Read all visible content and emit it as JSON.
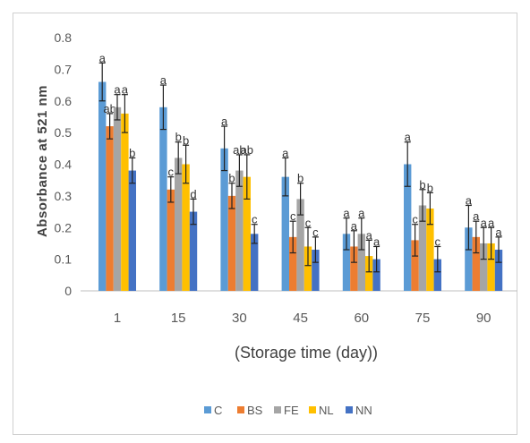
{
  "chart_data": {
    "type": "bar",
    "title": "",
    "xlabel": "(Storage time (day))",
    "ylabel": "Absorbance at 521 nm",
    "ylim": [
      0,
      0.8
    ],
    "yticks": [
      "0",
      "0.1",
      "0.2",
      "0.3",
      "0.4",
      "0.5",
      "0.6",
      "0.7",
      "0.8"
    ],
    "categories": [
      "1",
      "15",
      "30",
      "45",
      "60",
      "75",
      "90"
    ],
    "grid": false,
    "legend_position": "bottom",
    "series": [
      {
        "name": "C",
        "color": "#5b9bd5",
        "values": [
          0.66,
          0.58,
          0.45,
          0.36,
          0.18,
          0.4,
          0.2
        ],
        "errors": [
          0.06,
          0.07,
          0.07,
          0.06,
          0.05,
          0.07,
          0.07
        ],
        "letters": [
          "a",
          "a",
          "a",
          "a",
          "a",
          "a",
          "a"
        ]
      },
      {
        "name": "BS",
        "color": "#ed7d31",
        "values": [
          0.52,
          0.32,
          0.3,
          0.17,
          0.14,
          0.16,
          0.17
        ],
        "errors": [
          0.04,
          0.04,
          0.04,
          0.05,
          0.05,
          0.05,
          0.05
        ],
        "letters": [
          "ab",
          "c",
          "b",
          "c",
          "a",
          "c",
          "a"
        ]
      },
      {
        "name": "FE",
        "color": "#a5a5a5",
        "values": [
          0.58,
          0.42,
          0.38,
          0.29,
          0.18,
          0.27,
          0.15
        ],
        "errors": [
          0.04,
          0.05,
          0.05,
          0.05,
          0.05,
          0.05,
          0.05
        ],
        "letters": [
          "a",
          "b",
          "ab",
          "b",
          "a",
          "b",
          "a"
        ]
      },
      {
        "name": "NL",
        "color": "#ffc000",
        "values": [
          0.56,
          0.4,
          0.36,
          0.14,
          0.11,
          0.26,
          0.15
        ],
        "errors": [
          0.06,
          0.06,
          0.07,
          0.06,
          0.05,
          0.05,
          0.05
        ],
        "letters": [
          "a",
          "b",
          "ab",
          "c",
          "a",
          "b",
          "a"
        ]
      },
      {
        "name": "NN",
        "color": "#4472c4",
        "values": [
          0.38,
          0.25,
          0.18,
          0.13,
          0.1,
          0.1,
          0.13
        ],
        "errors": [
          0.04,
          0.04,
          0.03,
          0.04,
          0.04,
          0.04,
          0.04
        ],
        "letters": [
          "b",
          "d",
          "c",
          "c",
          "a",
          "c",
          "a"
        ]
      }
    ]
  }
}
